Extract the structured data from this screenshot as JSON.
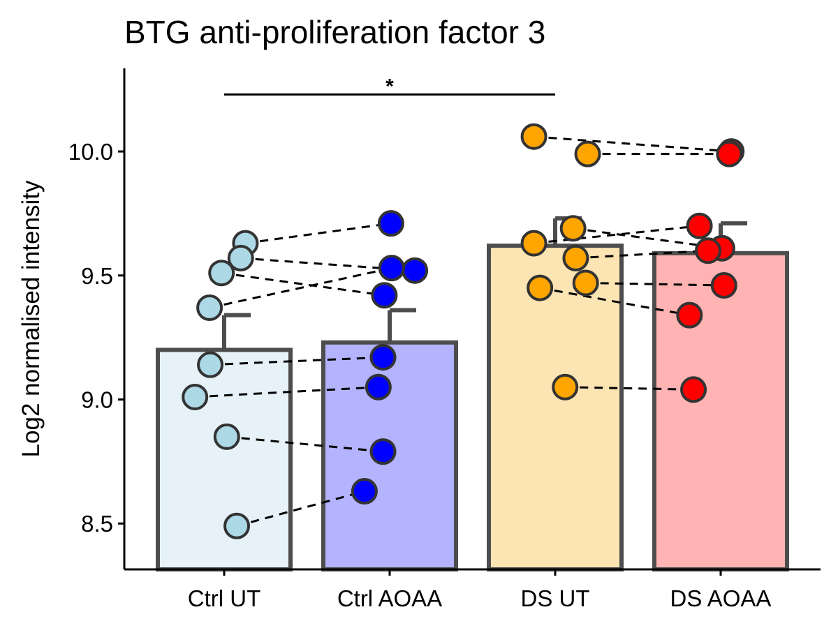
{
  "chart_data": {
    "type": "bar",
    "title": "BTG anti-proliferation factor 3",
    "xlabel": "",
    "ylabel": "Log2 normalised intensity",
    "ylim": [
      8.315,
      10.335
    ],
    "yticks": [
      8.5,
      9.0,
      9.5,
      10.0
    ],
    "ytick_labels": [
      "8.5",
      "9.0",
      "9.5",
      "10.0"
    ],
    "categories": [
      "Ctrl UT",
      "Ctrl AOAA",
      "DS UT",
      "DS AOAA"
    ],
    "bar_values": [
      9.2,
      9.23,
      9.62,
      9.59
    ],
    "error_upper": [
      9.34,
      9.36,
      9.73,
      9.71
    ],
    "bar_fill_colors": [
      "#e6f2f8",
      "#b3b3fe",
      "#fde4b3",
      "#ffb3b3"
    ],
    "point_colors": [
      "#add8e6",
      "#0000ff",
      "#ffa500",
      "#ff0000"
    ],
    "outline_color": "#4d4d4d",
    "grid": false,
    "legend": "none",
    "points": [
      [
        {
          "y": 9.63,
          "offset": 0.32
        },
        {
          "y": 9.57,
          "offset": 0.25
        },
        {
          "y": 9.51,
          "offset": -0.04
        },
        {
          "y": 9.37,
          "offset": -0.22
        },
        {
          "y": 9.14,
          "offset": -0.21
        },
        {
          "y": 9.01,
          "offset": -0.44
        },
        {
          "y": 8.85,
          "offset": 0.04
        },
        {
          "y": 8.49,
          "offset": 0.19
        }
      ],
      [
        {
          "y": 9.71,
          "offset": 0.02
        },
        {
          "y": 9.52,
          "offset": 0.38
        },
        {
          "y": 9.53,
          "offset": 0.03
        },
        {
          "y": 9.42,
          "offset": -0.08
        },
        {
          "y": 9.17,
          "offset": -0.1
        },
        {
          "y": 9.05,
          "offset": -0.17
        },
        {
          "y": 8.79,
          "offset": -0.1
        },
        {
          "y": 8.63,
          "offset": -0.38
        }
      ],
      [
        {
          "y": 10.06,
          "offset": -0.32
        },
        {
          "y": 9.99,
          "offset": 0.49
        },
        {
          "y": 9.69,
          "offset": 0.27
        },
        {
          "y": 9.63,
          "offset": -0.32
        },
        {
          "y": 9.57,
          "offset": 0.31
        },
        {
          "y": 9.47,
          "offset": 0.46
        },
        {
          "y": 9.45,
          "offset": -0.23
        },
        {
          "y": 9.05,
          "offset": 0.15
        }
      ],
      [
        {
          "y": 10.0,
          "offset": 0.16
        },
        {
          "y": 9.99,
          "offset": 0.13
        },
        {
          "y": 9.7,
          "offset": -0.32
        },
        {
          "y": 9.61,
          "offset": 0.02
        },
        {
          "y": 9.6,
          "offset": -0.19
        },
        {
          "y": 9.46,
          "offset": 0.05
        },
        {
          "y": 9.34,
          "offset": -0.47
        },
        {
          "y": 9.04,
          "offset": -0.41
        }
      ]
    ],
    "pairs": [
      {
        "from": [
          0,
          0
        ],
        "to": [
          1,
          0
        ]
      },
      {
        "from": [
          0,
          1
        ],
        "to": [
          1,
          1
        ]
      },
      {
        "from": [
          0,
          2
        ],
        "to": [
          1,
          3
        ]
      },
      {
        "from": [
          0,
          3
        ],
        "to": [
          1,
          2
        ]
      },
      {
        "from": [
          0,
          4
        ],
        "to": [
          1,
          4
        ]
      },
      {
        "from": [
          0,
          5
        ],
        "to": [
          1,
          5
        ]
      },
      {
        "from": [
          0,
          6
        ],
        "to": [
          1,
          6
        ]
      },
      {
        "from": [
          0,
          7
        ],
        "to": [
          1,
          7
        ]
      },
      {
        "from": [
          2,
          0
        ],
        "to": [
          3,
          0
        ]
      },
      {
        "from": [
          2,
          1
        ],
        "to": [
          3,
          1
        ]
      },
      {
        "from": [
          2,
          2
        ],
        "to": [
          3,
          3
        ]
      },
      {
        "from": [
          2,
          3
        ],
        "to": [
          3,
          2
        ]
      },
      {
        "from": [
          2,
          4
        ],
        "to": [
          3,
          4
        ]
      },
      {
        "from": [
          2,
          5
        ],
        "to": [
          3,
          5
        ]
      },
      {
        "from": [
          2,
          6
        ],
        "to": [
          3,
          6
        ]
      },
      {
        "from": [
          2,
          7
        ],
        "to": [
          3,
          7
        ]
      }
    ],
    "significance": [
      {
        "from": 0,
        "to": 2,
        "y": 10.23,
        "label": "*"
      }
    ]
  }
}
